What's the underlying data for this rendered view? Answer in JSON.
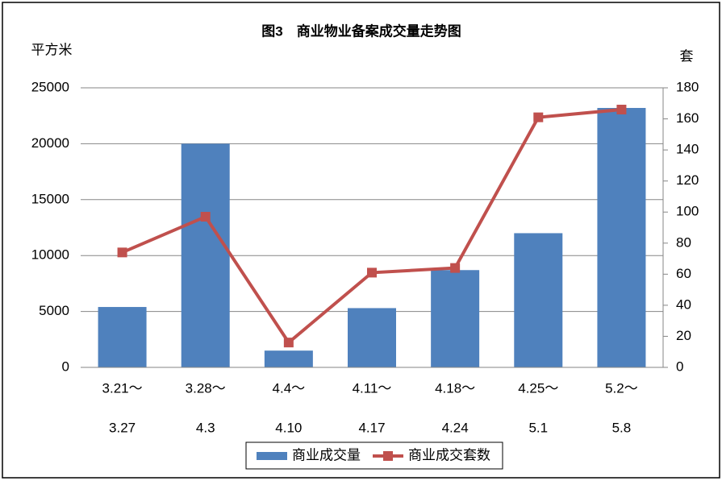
{
  "chart_data": {
    "type": "combo",
    "title": "图3　商业物业备案成交量走势图",
    "y_label": "平方米",
    "y2_label": "套",
    "categories": [
      [
        "3.21～",
        "3.27"
      ],
      [
        "3.28～",
        "4.3"
      ],
      [
        "4.4～",
        "4.10"
      ],
      [
        "4.11～",
        "4.17"
      ],
      [
        "4.18～",
        "4.24"
      ],
      [
        "4.25～",
        "5.1"
      ],
      [
        "5.2～",
        "5.8"
      ]
    ],
    "series": [
      {
        "name": "商业成交量",
        "type": "bar",
        "color": "#4f81bd",
        "values": [
          5400,
          20000,
          1500,
          5300,
          8700,
          12000,
          23200
        ]
      },
      {
        "name": "商业成交套数",
        "type": "line",
        "axis": "y2",
        "color": "#c0504d",
        "values": [
          74,
          97,
          16,
          61,
          64,
          161,
          166
        ]
      }
    ],
    "ylim": [
      0,
      25000
    ],
    "yticks": [
      0,
      5000,
      10000,
      15000,
      20000,
      25000
    ],
    "y2lim": [
      0,
      180
    ],
    "y2ticks": [
      0,
      20,
      40,
      60,
      80,
      100,
      120,
      140,
      160,
      180
    ],
    "grid": true
  }
}
